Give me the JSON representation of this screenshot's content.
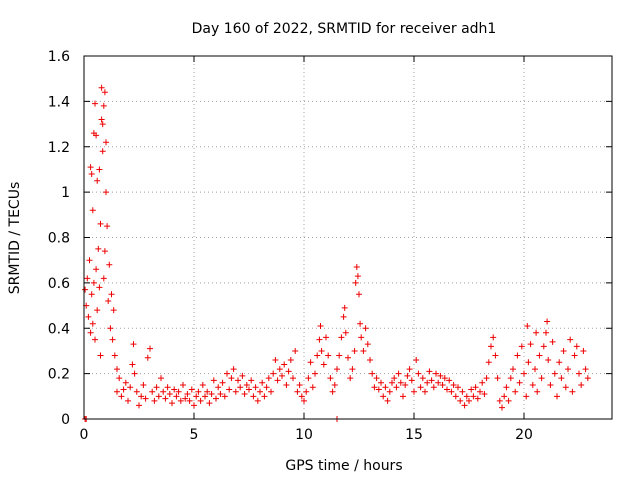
{
  "chart_data": {
    "type": "scatter",
    "title": "Day 160 of 2022, SRMTID for receiver adh1",
    "xlabel": "GPS time / hours",
    "ylabel": "SRMTID / TECUs",
    "xlim": [
      0,
      24
    ],
    "ylim": [
      0,
      1.6
    ],
    "grid": true,
    "marker": "+",
    "color": "#ee0000",
    "xticks": [
      {
        "value": 0,
        "label": "0"
      },
      {
        "value": 5,
        "label": "5"
      },
      {
        "value": 10,
        "label": "10"
      },
      {
        "value": 15,
        "label": "15"
      },
      {
        "value": 20,
        "label": "20"
      }
    ],
    "yticks": [
      {
        "value": 0,
        "label": "0"
      },
      {
        "value": 0.2,
        "label": "0.2"
      },
      {
        "value": 0.4,
        "label": "0.4"
      },
      {
        "value": 0.6,
        "label": "0.6"
      },
      {
        "value": 0.8,
        "label": "0.8"
      },
      {
        "value": 1.0,
        "label": "1"
      },
      {
        "value": 1.2,
        "label": "1.2"
      },
      {
        "value": 1.4,
        "label": "1.4"
      },
      {
        "value": 1.6,
        "label": "1.6"
      }
    ],
    "series": [
      {
        "name": "adh1",
        "points": [
          [
            0.05,
            0.0
          ],
          [
            0.1,
            0.0
          ],
          [
            0.05,
            0.57
          ],
          [
            0.1,
            0.5
          ],
          [
            0.15,
            0.62
          ],
          [
            0.2,
            0.45
          ],
          [
            0.25,
            0.7
          ],
          [
            0.3,
            0.38
          ],
          [
            0.3,
            1.11
          ],
          [
            0.35,
            0.55
          ],
          [
            0.35,
            1.08
          ],
          [
            0.4,
            0.42
          ],
          [
            0.4,
            0.92
          ],
          [
            0.45,
            0.6
          ],
          [
            0.45,
            1.26
          ],
          [
            0.5,
            0.35
          ],
          [
            0.5,
            1.39
          ],
          [
            0.55,
            0.66
          ],
          [
            0.55,
            1.25
          ],
          [
            0.6,
            0.48
          ],
          [
            0.6,
            1.05
          ],
          [
            0.65,
            0.75
          ],
          [
            0.7,
            0.58
          ],
          [
            0.7,
            1.1
          ],
          [
            0.75,
            0.28
          ],
          [
            0.75,
            0.86
          ],
          [
            0.8,
            1.32
          ],
          [
            0.8,
            1.46
          ],
          [
            0.85,
            1.3
          ],
          [
            0.85,
            1.18
          ],
          [
            0.9,
            0.62
          ],
          [
            0.9,
            1.38
          ],
          [
            0.95,
            1.44
          ],
          [
            0.95,
            0.74
          ],
          [
            1.0,
            1.22
          ],
          [
            1.0,
            1.0
          ],
          [
            1.05,
            0.85
          ],
          [
            1.1,
            0.52
          ],
          [
            1.15,
            0.68
          ],
          [
            1.2,
            0.4
          ],
          [
            1.25,
            0.55
          ],
          [
            1.3,
            0.35
          ],
          [
            1.35,
            0.48
          ],
          [
            1.4,
            0.28
          ],
          [
            1.5,
            0.22
          ],
          [
            1.5,
            0.12
          ],
          [
            1.6,
            0.18
          ],
          [
            1.7,
            0.1
          ],
          [
            1.8,
            0.13
          ],
          [
            1.9,
            0.16
          ],
          [
            2.0,
            0.08
          ],
          [
            2.1,
            0.14
          ],
          [
            2.2,
            0.24
          ],
          [
            2.25,
            0.33
          ],
          [
            2.3,
            0.2
          ],
          [
            2.4,
            0.12
          ],
          [
            2.5,
            0.06
          ],
          [
            2.6,
            0.1
          ],
          [
            2.7,
            0.15
          ],
          [
            2.8,
            0.09
          ],
          [
            2.9,
            0.27
          ],
          [
            3.0,
            0.31
          ],
          [
            3.1,
            0.12
          ],
          [
            3.2,
            0.08
          ],
          [
            3.3,
            0.14
          ],
          [
            3.4,
            0.1
          ],
          [
            3.5,
            0.18
          ],
          [
            3.6,
            0.12
          ],
          [
            3.7,
            0.09
          ],
          [
            3.8,
            0.14
          ],
          [
            3.9,
            0.11
          ],
          [
            4.0,
            0.07
          ],
          [
            4.1,
            0.13
          ],
          [
            4.2,
            0.1
          ],
          [
            4.3,
            0.12
          ],
          [
            4.4,
            0.08
          ],
          [
            4.5,
            0.15
          ],
          [
            4.6,
            0.09
          ],
          [
            4.7,
            0.11
          ],
          [
            4.8,
            0.08
          ],
          [
            4.9,
            0.13
          ],
          [
            5.0,
            0.06
          ],
          [
            5.1,
            0.1
          ],
          [
            5.2,
            0.12
          ],
          [
            5.3,
            0.08
          ],
          [
            5.4,
            0.15
          ],
          [
            5.5,
            0.1
          ],
          [
            5.6,
            0.12
          ],
          [
            5.7,
            0.07
          ],
          [
            5.8,
            0.11
          ],
          [
            5.9,
            0.17
          ],
          [
            6.0,
            0.09
          ],
          [
            6.1,
            0.14
          ],
          [
            6.2,
            0.11
          ],
          [
            6.3,
            0.16
          ],
          [
            6.4,
            0.1
          ],
          [
            6.5,
            0.2
          ],
          [
            6.6,
            0.13
          ],
          [
            6.7,
            0.18
          ],
          [
            6.8,
            0.22
          ],
          [
            6.9,
            0.12
          ],
          [
            7.0,
            0.17
          ],
          [
            7.1,
            0.14
          ],
          [
            7.2,
            0.19
          ],
          [
            7.3,
            0.11
          ],
          [
            7.4,
            0.15
          ],
          [
            7.5,
            0.13
          ],
          [
            7.6,
            0.17
          ],
          [
            7.7,
            0.1
          ],
          [
            7.8,
            0.14
          ],
          [
            7.9,
            0.08
          ],
          [
            8.0,
            0.12
          ],
          [
            8.1,
            0.16
          ],
          [
            8.2,
            0.1
          ],
          [
            8.3,
            0.14
          ],
          [
            8.4,
            0.18
          ],
          [
            8.5,
            0.12
          ],
          [
            8.6,
            0.2
          ],
          [
            8.7,
            0.26
          ],
          [
            8.8,
            0.17
          ],
          [
            8.9,
            0.22
          ],
          [
            9.0,
            0.19
          ],
          [
            9.1,
            0.24
          ],
          [
            9.2,
            0.15
          ],
          [
            9.3,
            0.21
          ],
          [
            9.4,
            0.26
          ],
          [
            9.5,
            0.18
          ],
          [
            9.6,
            0.3
          ],
          [
            9.7,
            0.12
          ],
          [
            9.8,
            0.15
          ],
          [
            9.9,
            0.1
          ],
          [
            10.0,
            0.08
          ],
          [
            10.1,
            0.12
          ],
          [
            10.2,
            0.18
          ],
          [
            10.3,
            0.25
          ],
          [
            10.4,
            0.14
          ],
          [
            10.5,
            0.2
          ],
          [
            10.6,
            0.28
          ],
          [
            10.7,
            0.35
          ],
          [
            10.75,
            0.41
          ],
          [
            10.8,
            0.3
          ],
          [
            10.9,
            0.24
          ],
          [
            11.0,
            0.36
          ],
          [
            11.1,
            0.28
          ],
          [
            11.2,
            0.18
          ],
          [
            11.3,
            0.12
          ],
          [
            11.4,
            0.15
          ],
          [
            11.5,
            0.22
          ],
          [
            11.5,
            0.0
          ],
          [
            11.6,
            0.28
          ],
          [
            11.7,
            0.36
          ],
          [
            11.8,
            0.45
          ],
          [
            11.85,
            0.49
          ],
          [
            11.9,
            0.38
          ],
          [
            12.0,
            0.27
          ],
          [
            12.1,
            0.18
          ],
          [
            12.2,
            0.22
          ],
          [
            12.3,
            0.3
          ],
          [
            12.35,
            0.6
          ],
          [
            12.4,
            0.67
          ],
          [
            12.45,
            0.63
          ],
          [
            12.5,
            0.55
          ],
          [
            12.55,
            0.42
          ],
          [
            12.6,
            0.36
          ],
          [
            12.7,
            0.3
          ],
          [
            12.8,
            0.4
          ],
          [
            12.9,
            0.33
          ],
          [
            13.0,
            0.26
          ],
          [
            13.1,
            0.2
          ],
          [
            13.2,
            0.14
          ],
          [
            13.3,
            0.18
          ],
          [
            13.4,
            0.13
          ],
          [
            13.5,
            0.16
          ],
          [
            13.6,
            0.1
          ],
          [
            13.7,
            0.14
          ],
          [
            13.8,
            0.08
          ],
          [
            13.9,
            0.12
          ],
          [
            14.0,
            0.16
          ],
          [
            14.1,
            0.18
          ],
          [
            14.2,
            0.14
          ],
          [
            14.3,
            0.2
          ],
          [
            14.4,
            0.16
          ],
          [
            14.5,
            0.1
          ],
          [
            14.6,
            0.15
          ],
          [
            14.7,
            0.19
          ],
          [
            14.8,
            0.22
          ],
          [
            14.9,
            0.17
          ],
          [
            15.0,
            0.12
          ],
          [
            15.1,
            0.26
          ],
          [
            15.2,
            0.2
          ],
          [
            15.3,
            0.14
          ],
          [
            15.4,
            0.18
          ],
          [
            15.5,
            0.12
          ],
          [
            15.6,
            0.16
          ],
          [
            15.7,
            0.21
          ],
          [
            15.8,
            0.17
          ],
          [
            15.9,
            0.14
          ],
          [
            16.0,
            0.2
          ],
          [
            16.1,
            0.16
          ],
          [
            16.2,
            0.19
          ],
          [
            16.3,
            0.15
          ],
          [
            16.4,
            0.18
          ],
          [
            16.5,
            0.13
          ],
          [
            16.6,
            0.17
          ],
          [
            16.7,
            0.12
          ],
          [
            16.8,
            0.15
          ],
          [
            16.9,
            0.1
          ],
          [
            17.0,
            0.14
          ],
          [
            17.1,
            0.08
          ],
          [
            17.2,
            0.12
          ],
          [
            17.3,
            0.06
          ],
          [
            17.4,
            0.1
          ],
          [
            17.5,
            0.08
          ],
          [
            17.6,
            0.13
          ],
          [
            17.7,
            0.1
          ],
          [
            17.8,
            0.14
          ],
          [
            17.9,
            0.09
          ],
          [
            18.0,
            0.12
          ],
          [
            18.1,
            0.16
          ],
          [
            18.2,
            0.11
          ],
          [
            18.3,
            0.18
          ],
          [
            18.4,
            0.25
          ],
          [
            18.5,
            0.32
          ],
          [
            18.6,
            0.36
          ],
          [
            18.7,
            0.28
          ],
          [
            18.8,
            0.18
          ],
          [
            18.9,
            0.08
          ],
          [
            19.0,
            0.05
          ],
          [
            19.1,
            0.1
          ],
          [
            19.2,
            0.14
          ],
          [
            19.3,
            0.08
          ],
          [
            19.4,
            0.18
          ],
          [
            19.5,
            0.22
          ],
          [
            19.6,
            0.12
          ],
          [
            19.7,
            0.28
          ],
          [
            19.8,
            0.16
          ],
          [
            19.9,
            0.32
          ],
          [
            20.0,
            0.2
          ],
          [
            20.1,
            0.1
          ],
          [
            20.15,
            0.41
          ],
          [
            20.2,
            0.25
          ],
          [
            20.3,
            0.33
          ],
          [
            20.4,
            0.15
          ],
          [
            20.5,
            0.22
          ],
          [
            20.55,
            0.38
          ],
          [
            20.6,
            0.12
          ],
          [
            20.7,
            0.28
          ],
          [
            20.8,
            0.18
          ],
          [
            20.9,
            0.32
          ],
          [
            21.0,
            0.38
          ],
          [
            21.05,
            0.43
          ],
          [
            21.1,
            0.26
          ],
          [
            21.2,
            0.15
          ],
          [
            21.3,
            0.34
          ],
          [
            21.4,
            0.2
          ],
          [
            21.5,
            0.1
          ],
          [
            21.6,
            0.25
          ],
          [
            21.7,
            0.18
          ],
          [
            21.8,
            0.3
          ],
          [
            21.9,
            0.14
          ],
          [
            22.0,
            0.22
          ],
          [
            22.1,
            0.35
          ],
          [
            22.2,
            0.12
          ],
          [
            22.3,
            0.28
          ],
          [
            22.4,
            0.32
          ],
          [
            22.5,
            0.2
          ],
          [
            22.6,
            0.15
          ],
          [
            22.7,
            0.3
          ],
          [
            22.8,
            0.22
          ],
          [
            22.9,
            0.18
          ]
        ]
      }
    ]
  }
}
